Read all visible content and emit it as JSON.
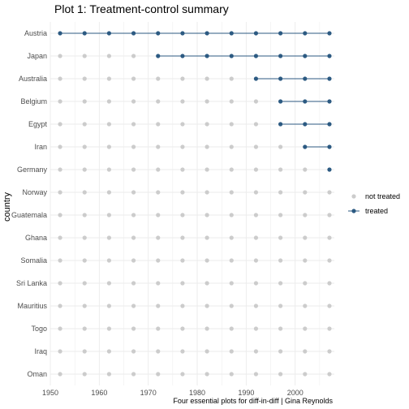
{
  "chart_data": {
    "type": "scatter",
    "title": "Plot 1: Treatment-control summary",
    "ylabel": "country",
    "caption": "Four essential plots for diff-in-diff | Gina Reynolds",
    "xlim": [
      1950,
      2008
    ],
    "x_ticks": [
      1950,
      1960,
      1970,
      1980,
      1990,
      2000
    ],
    "years": [
      1952,
      1957,
      1962,
      1967,
      1972,
      1977,
      1982,
      1987,
      1992,
      1997,
      2002,
      2007
    ],
    "countries": [
      {
        "name": "Austria",
        "treated_from": 1952
      },
      {
        "name": "Japan",
        "treated_from": 1972
      },
      {
        "name": "Australia",
        "treated_from": 1992
      },
      {
        "name": "Belgium",
        "treated_from": 1997
      },
      {
        "name": "Egypt",
        "treated_from": 1997
      },
      {
        "name": "Iran",
        "treated_from": 2002
      },
      {
        "name": "Germany",
        "treated_from": 2007
      },
      {
        "name": "Norway",
        "treated_from": null
      },
      {
        "name": "Guatemala",
        "treated_from": null
      },
      {
        "name": "Ghana",
        "treated_from": null
      },
      {
        "name": "Somalia",
        "treated_from": null
      },
      {
        "name": "Sri Lanka",
        "treated_from": null
      },
      {
        "name": "Mauritius",
        "treated_from": null
      },
      {
        "name": "Togo",
        "treated_from": null
      },
      {
        "name": "Iraq",
        "treated_from": null
      },
      {
        "name": "Oman",
        "treated_from": null
      }
    ],
    "legend": {
      "position": "right",
      "items": [
        {
          "label": "not treated",
          "color": "#cccccc"
        },
        {
          "label": "treated",
          "color": "#2c5a82"
        }
      ]
    },
    "colors": {
      "not_treated": "#cccccc",
      "treated": "#2c5a82",
      "grid": "#ebebeb"
    },
    "grid": true
  }
}
